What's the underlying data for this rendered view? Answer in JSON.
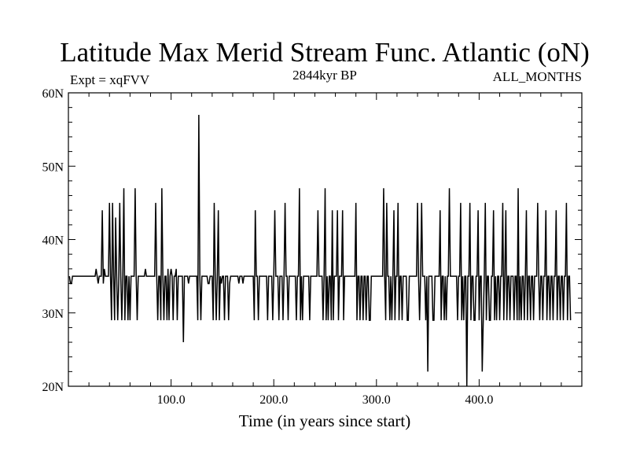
{
  "chart_data": {
    "type": "line",
    "title": "Latitude Max Merid Stream Func. Atlantic (oN)",
    "subtitle_left": "Expt = xqFVV",
    "subtitle_center": "2844kyr BP",
    "subtitle_right": "ALL_MONTHS",
    "xlabel": "Time (in years since start)",
    "ylabel": "",
    "xlim": [
      0,
      500
    ],
    "ylim": [
      20,
      60
    ],
    "x_ticks": [
      {
        "value": 100,
        "label": "100.0"
      },
      {
        "value": 200,
        "label": "200.0"
      },
      {
        "value": 300,
        "label": "300.0"
      },
      {
        "value": 400,
        "label": "400.0"
      }
    ],
    "y_ticks": [
      {
        "value": 20,
        "label": "20N"
      },
      {
        "value": 30,
        "label": "30N"
      },
      {
        "value": 40,
        "label": "40N"
      },
      {
        "value": 50,
        "label": "50N"
      },
      {
        "value": 60,
        "label": "60N"
      }
    ],
    "grid": false,
    "line_color": "#000000",
    "series": [
      {
        "x_start": 1,
        "x_step": 1,
        "values": [
          35,
          34,
          34,
          35,
          35,
          35,
          35,
          35,
          35,
          35,
          35,
          35,
          35,
          35,
          35,
          35,
          35,
          35,
          35,
          35,
          35,
          35,
          35,
          35,
          35,
          35,
          36,
          35,
          34,
          35,
          35,
          35,
          44,
          34,
          36,
          35,
          35,
          35,
          35,
          45,
          35,
          29,
          45,
          35,
          29,
          43,
          35,
          29,
          34,
          45,
          35,
          29,
          35,
          47,
          29,
          35,
          35,
          29,
          35,
          29,
          35,
          35,
          35,
          35,
          47,
          35,
          29,
          35,
          35,
          35,
          35,
          35,
          35,
          35,
          36,
          35,
          35,
          35,
          35,
          35,
          35,
          35,
          35,
          35,
          45,
          35,
          29,
          35,
          35,
          29,
          47,
          35,
          29,
          35,
          35,
          29,
          36,
          29,
          35,
          36,
          35,
          29,
          35,
          35,
          36,
          29,
          35,
          35,
          35,
          35,
          35,
          26,
          35,
          35,
          35,
          35,
          34,
          35,
          35,
          35,
          35,
          35,
          35,
          35,
          35,
          29,
          57,
          35,
          29,
          35,
          35,
          35,
          35,
          35,
          35,
          34,
          34,
          35,
          35,
          35,
          29,
          45,
          35,
          29,
          35,
          44,
          29,
          35,
          34,
          35,
          35,
          29,
          35,
          35,
          35,
          29,
          34,
          35,
          35,
          35,
          35,
          35,
          35,
          35,
          35,
          34,
          35,
          35,
          35,
          34,
          35,
          35,
          35,
          35,
          35,
          35,
          35,
          35,
          35,
          35,
          29,
          44,
          35,
          35,
          29,
          35,
          35,
          35,
          35,
          35,
          35,
          35,
          35,
          29,
          35,
          35,
          35,
          35,
          29,
          35,
          44,
          35,
          35,
          35,
          29,
          35,
          35,
          35,
          29,
          35,
          45,
          35,
          35,
          29,
          35,
          35,
          35,
          35,
          35,
          35,
          35,
          29,
          35,
          35,
          47,
          29,
          35,
          29,
          35,
          35,
          35,
          35,
          35,
          35,
          29,
          35,
          35,
          35,
          35,
          35,
          35,
          35,
          44,
          35,
          35,
          35,
          35,
          29,
          35,
          47,
          29,
          35,
          29,
          35,
          35,
          29,
          44,
          29,
          35,
          35,
          35,
          44,
          29,
          35,
          35,
          35,
          44,
          29,
          35,
          35,
          35,
          35,
          35,
          35,
          35,
          35,
          35,
          35,
          35,
          45,
          29,
          35,
          35,
          29,
          35,
          35,
          29,
          35,
          35,
          29,
          35,
          35,
          29,
          29,
          35,
          35,
          35,
          35,
          35,
          35,
          35,
          35,
          35,
          35,
          35,
          35,
          47,
          35,
          29,
          45,
          35,
          35,
          29,
          35,
          29,
          35,
          44,
          29,
          35,
          35,
          45,
          29,
          35,
          35,
          29,
          35,
          35,
          35,
          35,
          29,
          29,
          35,
          35,
          35,
          35,
          35,
          35,
          35,
          35,
          45,
          35,
          29,
          35,
          45,
          35,
          35,
          35,
          29,
          35,
          22,
          35,
          35,
          35,
          35,
          29,
          29,
          35,
          35,
          35,
          35,
          35,
          44,
          29,
          35,
          35,
          29,
          35,
          29,
          35,
          35,
          47,
          35,
          35,
          35,
          35,
          35,
          35,
          35,
          29,
          35,
          35,
          45,
          29,
          35,
          29,
          35,
          35,
          20,
          35,
          35,
          45,
          29,
          35,
          35,
          29,
          29,
          35,
          35,
          44,
          29,
          35,
          35,
          22,
          29,
          35,
          45,
          29,
          35,
          35,
          29,
          29,
          35,
          35,
          44,
          29,
          35,
          29,
          35,
          35,
          29,
          35,
          35,
          45,
          29,
          35,
          44,
          29,
          35,
          35,
          29,
          35,
          35,
          35,
          29,
          35,
          35,
          29,
          47,
          29,
          35,
          29,
          35,
          35,
          29,
          35,
          44,
          29,
          35,
          35,
          29,
          35,
          35,
          29,
          35,
          35,
          35,
          45,
          35,
          29,
          35,
          35,
          29,
          35,
          35,
          44,
          29,
          35,
          35,
          29,
          35,
          35,
          29,
          35,
          35,
          44,
          29,
          35,
          35,
          29,
          35,
          35,
          29,
          35,
          35,
          45,
          29,
          35,
          35,
          29
        ]
      }
    ]
  }
}
